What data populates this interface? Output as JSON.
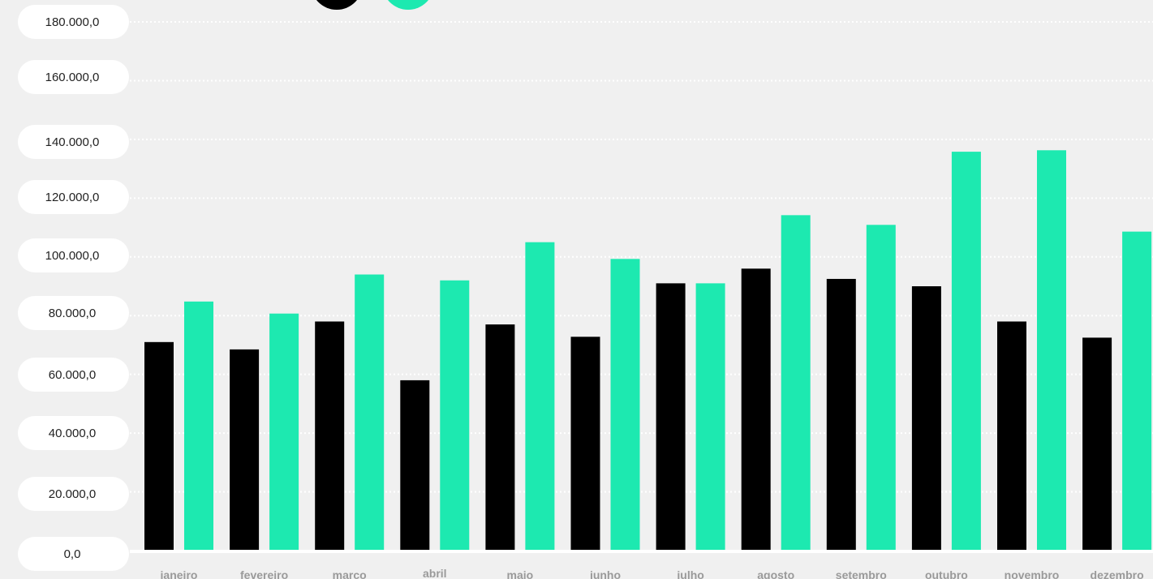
{
  "chart_data": {
    "type": "bar",
    "categories": [
      "janeiro",
      "fevereiro",
      "marco",
      "abril",
      "maio",
      "junho",
      "julho",
      "agosto",
      "setembro",
      "outubro",
      "novembro",
      "dezembro"
    ],
    "series": [
      {
        "color": "#000000",
        "values": [
          71000,
          68500,
          78000,
          58000,
          77000,
          72800,
          91000,
          96000,
          92500,
          90000,
          78000,
          72500
        ]
      },
      {
        "color": "#1de9b0",
        "values": [
          84800,
          80700,
          94000,
          92000,
          105000,
          99300,
          91000,
          114200,
          110900,
          135800,
          136300,
          108600
        ]
      }
    ],
    "yticks": [
      "0,0",
      "20.000,0",
      "40.000,0",
      "60.000,0",
      "80.000,0",
      "100.000,0",
      "120.000,0",
      "140.000,0",
      "160.000,0",
      "180.000,0"
    ],
    "ylim": [
      0,
      180000
    ],
    "grid": true,
    "legend": "top-left"
  }
}
